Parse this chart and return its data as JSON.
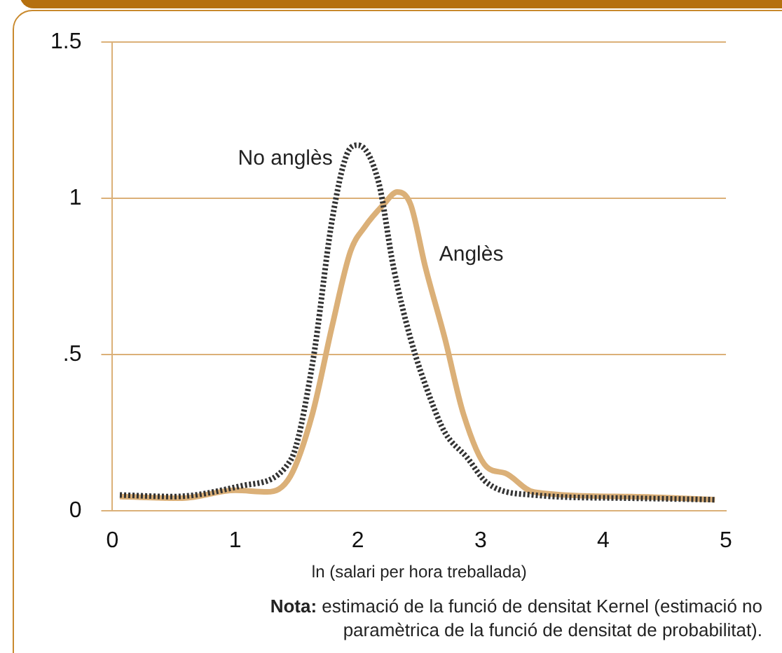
{
  "chart_data": {
    "type": "line",
    "xlabel": "ln (salari per hora treballada)",
    "annotations": [
      "Nota: estimació de la funció de densitat Kernel (estimació no paramètrica de la funció de densitat de probabilitat)."
    ],
    "xlim": [
      0,
      5
    ],
    "xticks": [
      0,
      1,
      2,
      3,
      4,
      5
    ],
    "ylim": [
      0,
      1.5
    ],
    "yticks": [
      0,
      {
        "value": 0.5,
        "label": ".5"
      },
      1,
      1.5
    ],
    "grid": "y",
    "legend": false,
    "marker": "none",
    "series": [
      {
        "name": "No anglès",
        "color": "#333333",
        "line_style": "dotted",
        "x": [
          0.06,
          0.5,
          1.06,
          1.45,
          1.63,
          1.79,
          1.91,
          2.0,
          2.17,
          2.29,
          2.43,
          2.59,
          2.71,
          2.89,
          3.05,
          3.43,
          4.2,
          4.91
        ],
        "values": [
          0.05,
          0.045,
          0.08,
          0.16,
          0.47,
          0.93,
          1.14,
          1.17,
          1.05,
          0.78,
          0.55,
          0.36,
          0.25,
          0.17,
          0.09,
          0.05,
          0.04,
          0.035
        ]
      },
      {
        "name": "Anglès",
        "color": "#dbb078",
        "line_style": "solid",
        "x": [
          0.06,
          0.57,
          1.0,
          1.26,
          1.45,
          1.63,
          1.79,
          1.94,
          2.06,
          2.21,
          2.32,
          2.43,
          2.55,
          2.71,
          2.86,
          3.05,
          3.2,
          3.43,
          4.23,
          4.91
        ],
        "values": [
          0.045,
          0.04,
          0.065,
          0.06,
          0.11,
          0.31,
          0.59,
          0.83,
          0.91,
          0.98,
          1.02,
          0.98,
          0.78,
          0.55,
          0.31,
          0.14,
          0.12,
          0.06,
          0.045,
          0.035
        ]
      }
    ]
  }
}
